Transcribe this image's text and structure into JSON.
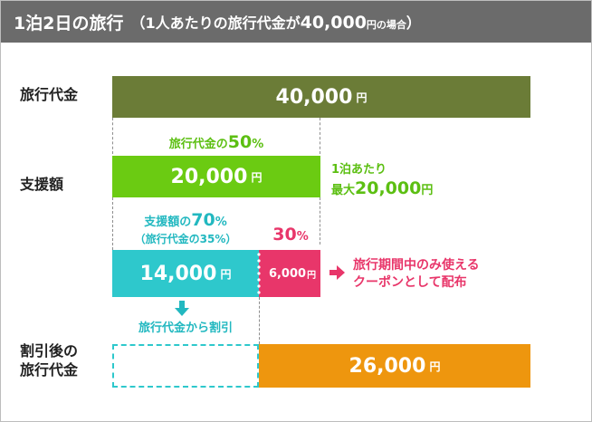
{
  "header": {
    "title": "1泊2日の旅行",
    "sub_open": "（1人あたりの旅行代金が",
    "sub_amount": "40,000",
    "sub_unit": "円の場合",
    "sub_close": "）"
  },
  "rows": {
    "travel_cost_label": "旅行代金",
    "support_label": "支援額",
    "after_label_line1": "割引後の",
    "after_label_line2": "旅行代金"
  },
  "bars": {
    "total": {
      "value": "40,000",
      "unit": "円"
    },
    "support": {
      "value": "20,000",
      "unit": "円"
    },
    "discount": {
      "value": "14,000",
      "unit": "円"
    },
    "coupon": {
      "value": "6,000",
      "unit": "円"
    },
    "after": {
      "value": "26,000",
      "unit": "円"
    }
  },
  "captions": {
    "fifty_prefix": "旅行代金の",
    "fifty_value": "50",
    "fifty_unit": "%",
    "max_line1": "1泊あたり",
    "max_line2_prefix": "最大",
    "max_line2_value": "20,000",
    "max_line2_unit": "円",
    "seventy_prefix": "支援額の",
    "seventy_value": "70",
    "seventy_unit": "%",
    "seventy_sub": "（旅行代金の35%）",
    "thirty_value": "30",
    "thirty_unit": "%",
    "coupon_line1": "旅行期間中のみ使える",
    "coupon_line2": "クーポンとして配布",
    "deduct": "旅行代金から割引"
  },
  "colors": {
    "header_bg": "#6b6b6b",
    "olive": "#6b7c37",
    "green": "#6bcb12",
    "teal": "#2ec8cc",
    "pink": "#e8366a",
    "orange": "#ee960e",
    "label_green": "#5cbf12",
    "label_teal": "#22b8c0"
  }
}
